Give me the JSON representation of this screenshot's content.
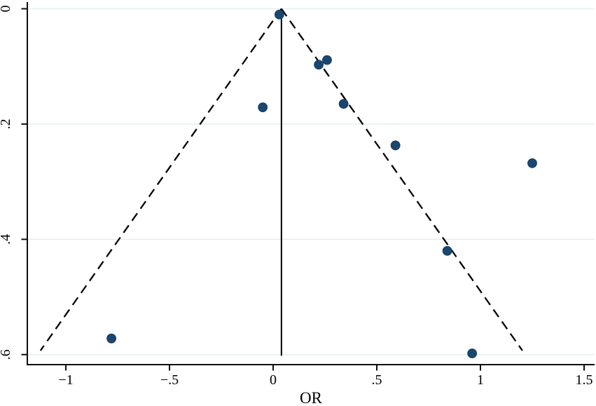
{
  "chart_data": {
    "type": "scatter",
    "title": "",
    "xlabel": "OR",
    "ylabel": "",
    "grid": true,
    "legend": null,
    "y_axis_inverted": true,
    "xlim": [
      -1.19,
      1.55
    ],
    "ylim": [
      0,
      0.6
    ],
    "x_ticks": [
      {
        "value": -1.0,
        "label": "−1"
      },
      {
        "value": -0.5,
        "label": "−.5"
      },
      {
        "value": 0.0,
        "label": "0"
      },
      {
        "value": 0.5,
        "label": ".5"
      },
      {
        "value": 1.0,
        "label": "1"
      },
      {
        "value": 1.5,
        "label": "1.5"
      }
    ],
    "y_ticks": [
      {
        "value": 0.0,
        "label": "0"
      },
      {
        "value": 0.2,
        "label": ".2"
      },
      {
        "value": 0.4,
        "label": ".4"
      },
      {
        "value": 0.6,
        "label": ".6"
      }
    ],
    "points": [
      {
        "or": 0.03,
        "se": 0.01
      },
      {
        "or": 0.22,
        "se": 0.097
      },
      {
        "or": 0.26,
        "se": 0.089
      },
      {
        "or": -0.05,
        "se": 0.171
      },
      {
        "or": 0.34,
        "se": 0.165
      },
      {
        "or": 0.59,
        "se": 0.237
      },
      {
        "or": 1.25,
        "se": 0.268
      },
      {
        "or": 0.84,
        "se": 0.42
      },
      {
        "or": -0.78,
        "se": 0.572
      },
      {
        "or": 0.96,
        "se": 0.598
      }
    ],
    "pooled_effect_line": {
      "x": 0.04,
      "se_top": 0.0,
      "se_bottom": 0.602
    },
    "funnel_limits": {
      "center": 0.04,
      "slope": 1.96,
      "se_start": 0.0,
      "se_end": 0.593
    },
    "colors": {
      "point_fill": "#1a476f",
      "point_border": "#123a5c",
      "funnel_line": "#000000",
      "pooled_line": "#000000",
      "grid_line": "#e4efef",
      "axis_line": "#0d0d0d",
      "tick_label": "#000000"
    }
  }
}
